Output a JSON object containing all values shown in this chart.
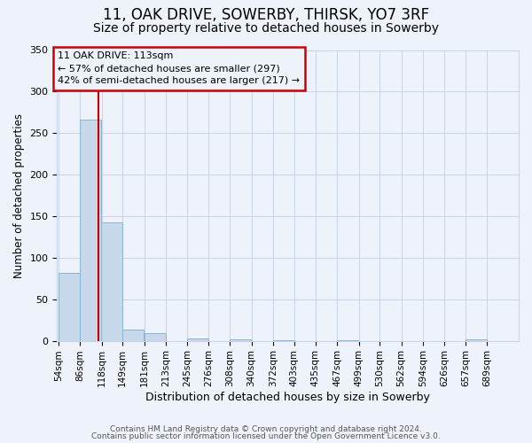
{
  "title": "11, OAK DRIVE, SOWERBY, THIRSK, YO7 3RF",
  "subtitle": "Size of property relative to detached houses in Sowerby",
  "xlabel": "Distribution of detached houses by size in Sowerby",
  "ylabel": "Number of detached properties",
  "bin_labels": [
    "54sqm",
    "86sqm",
    "118sqm",
    "149sqm",
    "181sqm",
    "213sqm",
    "245sqm",
    "276sqm",
    "308sqm",
    "340sqm",
    "372sqm",
    "403sqm",
    "435sqm",
    "467sqm",
    "499sqm",
    "530sqm",
    "562sqm",
    "594sqm",
    "626sqm",
    "657sqm",
    "689sqm"
  ],
  "bar_heights": [
    82,
    266,
    143,
    13,
    9,
    0,
    3,
    0,
    2,
    0,
    1,
    0,
    0,
    1,
    0,
    0,
    0,
    0,
    0,
    2,
    0
  ],
  "bar_color": "#c8d8eb",
  "bar_edge_color": "#8ab4d0",
  "vline_color": "#cc0000",
  "annotation_box_color": "#cc0000",
  "ylim_max": 350,
  "yticks": [
    0,
    50,
    100,
    150,
    200,
    250,
    300,
    350
  ],
  "grid_color": "#c8d4e8",
  "footer_line1": "Contains HM Land Registry data © Crown copyright and database right 2024.",
  "footer_line2": "Contains public sector information licensed under the Open Government Licence v3.0.",
  "background_color": "#eef2fa",
  "title_fontsize": 12,
  "subtitle_fontsize": 10,
  "bin_edges": [
    54,
    86,
    118,
    149,
    181,
    213,
    245,
    276,
    308,
    340,
    372,
    403,
    435,
    467,
    499,
    530,
    562,
    594,
    626,
    657,
    689,
    721
  ],
  "property_size": 113,
  "annotation_line1": "11 OAK DRIVE: 113sqm",
  "annotation_line2": "← 57% of detached houses are smaller (297)",
  "annotation_line3": "42% of semi-detached houses are larger (217) →"
}
